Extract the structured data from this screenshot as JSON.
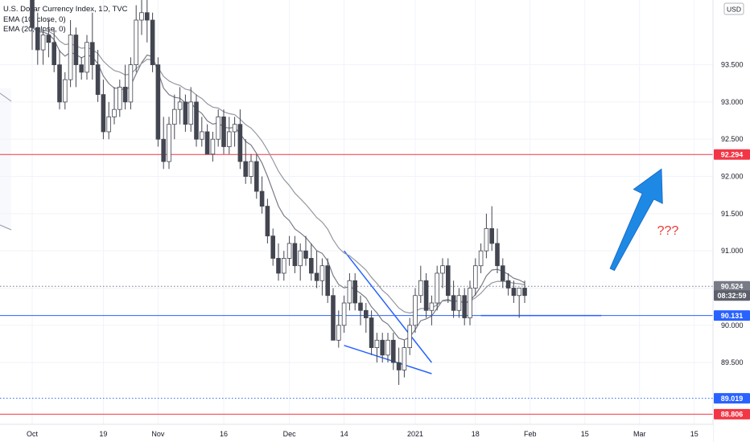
{
  "legend": {
    "title": "U.S. Dollar Currency Index, 1D, TVC",
    "ema1": "EMA (10, close, 0)",
    "ema2": "EMA (20, close, 0)"
  },
  "currency": "USD",
  "annotation": "???",
  "chart_data": {
    "type": "candlestick",
    "title": "U.S. Dollar Currency Index, 1D, TVC",
    "y_ticks": [
      93.5,
      93.0,
      92.5,
      92.0,
      91.5,
      91.0,
      90.5,
      90.0,
      89.5
    ],
    "y_tick_labels": [
      "93.500",
      "93.000",
      "92.500",
      "92.000",
      "91.500",
      "91.000",
      "90.500",
      "90.000",
      "89.500"
    ],
    "ylim": [
      88.67,
      94.37
    ],
    "x_ticks": [
      {
        "label": "Oct",
        "index": 0
      },
      {
        "label": "19",
        "index": 13
      },
      {
        "label": "Nov",
        "index": 23
      },
      {
        "label": "16",
        "index": 35
      },
      {
        "label": "Dec",
        "index": 47
      },
      {
        "label": "14",
        "index": 57
      },
      {
        "label": "2021",
        "index": 70
      },
      {
        "label": "18",
        "index": 81
      },
      {
        "label": "Feb",
        "index": 91
      },
      {
        "label": "15",
        "index": 101
      },
      {
        "label": "Mar",
        "index": 111
      },
      {
        "label": "15",
        "index": 121
      }
    ],
    "price_levels": [
      {
        "label": "92.294",
        "value": 92.294,
        "color": "#f23645",
        "style": "solid"
      },
      {
        "label": "90.524",
        "value": 90.524,
        "color": "#787b86",
        "style": "dotted"
      },
      {
        "label": "08:32:59",
        "value": 90.4,
        "color": "#787b86",
        "style": "none"
      },
      {
        "label": "90.131",
        "value": 90.131,
        "color": "#2962ff",
        "style": "solid"
      },
      {
        "label": "89.019",
        "value": 89.019,
        "color": "#2962ff",
        "style": "dotted"
      },
      {
        "label": "88.806",
        "value": 88.806,
        "color": "#f23645",
        "style": "solid"
      }
    ],
    "candles": [
      [
        94.6,
        94.8,
        93.7,
        94.0
      ],
      [
        94.0,
        94.2,
        93.5,
        93.7
      ],
      [
        93.7,
        94.0,
        93.5,
        93.9
      ],
      [
        93.9,
        94.1,
        93.6,
        93.8
      ],
      [
        93.8,
        94.0,
        93.4,
        93.5
      ],
      [
        93.5,
        93.7,
        92.9,
        93.0
      ],
      [
        93.0,
        93.4,
        92.9,
        93.3
      ],
      [
        93.3,
        94.1,
        93.2,
        93.9
      ],
      [
        93.9,
        94.0,
        93.2,
        93.5
      ],
      [
        93.5,
        93.6,
        93.3,
        93.4
      ],
      [
        93.4,
        93.9,
        93.3,
        93.8
      ],
      [
        93.8,
        94.2,
        93.3,
        93.5
      ],
      [
        93.5,
        93.7,
        93.0,
        93.1
      ],
      [
        93.1,
        93.3,
        92.5,
        92.6
      ],
      [
        92.6,
        93.0,
        92.5,
        92.8
      ],
      [
        92.8,
        93.2,
        92.7,
        92.9
      ],
      [
        92.9,
        93.3,
        92.8,
        93.2
      ],
      [
        93.2,
        93.5,
        92.9,
        93.0
      ],
      [
        93.0,
        93.6,
        92.9,
        93.5
      ],
      [
        93.5,
        94.3,
        93.4,
        94.1
      ],
      [
        94.1,
        94.5,
        93.9,
        94.2
      ],
      [
        94.2,
        94.5,
        93.8,
        94.1
      ],
      [
        94.1,
        94.2,
        93.4,
        93.5
      ],
      [
        93.5,
        93.6,
        92.4,
        92.5
      ],
      [
        92.5,
        92.8,
        92.1,
        92.2
      ],
      [
        92.2,
        92.8,
        92.1,
        92.7
      ],
      [
        92.7,
        93.1,
        92.5,
        92.9
      ],
      [
        92.9,
        93.2,
        92.7,
        93.0
      ],
      [
        93.0,
        93.1,
        92.6,
        92.7
      ],
      [
        92.7,
        93.2,
        92.6,
        93.0
      ],
      [
        93.0,
        93.1,
        92.4,
        92.5
      ],
      [
        92.5,
        92.8,
        92.4,
        92.6
      ],
      [
        92.6,
        92.7,
        92.3,
        92.3
      ],
      [
        92.3,
        92.6,
        92.2,
        92.5
      ],
      [
        92.5,
        92.9,
        92.4,
        92.8
      ],
      [
        92.8,
        92.9,
        92.3,
        92.4
      ],
      [
        92.4,
        92.8,
        92.3,
        92.6
      ],
      [
        92.6,
        92.8,
        92.4,
        92.7
      ],
      [
        92.7,
        92.9,
        92.1,
        92.2
      ],
      [
        92.2,
        92.5,
        91.9,
        92.0
      ],
      [
        92.0,
        92.3,
        91.9,
        92.2
      ],
      [
        92.2,
        92.3,
        91.7,
        91.8
      ],
      [
        91.8,
        92.0,
        91.5,
        91.6
      ],
      [
        91.6,
        91.7,
        91.1,
        91.2
      ],
      [
        91.2,
        91.3,
        90.8,
        90.9
      ],
      [
        90.9,
        91.1,
        90.6,
        90.7
      ],
      [
        90.7,
        91.0,
        90.6,
        90.9
      ],
      [
        90.9,
        91.2,
        90.8,
        91.1
      ],
      [
        91.1,
        91.2,
        90.7,
        90.8
      ],
      [
        90.8,
        91.1,
        90.6,
        91.0
      ],
      [
        91.0,
        91.2,
        90.8,
        90.9
      ],
      [
        90.9,
        91.1,
        90.6,
        90.7
      ],
      [
        90.7,
        91.0,
        90.5,
        90.6
      ],
      [
        90.6,
        90.9,
        90.4,
        90.8
      ],
      [
        90.8,
        90.9,
        90.3,
        90.4
      ],
      [
        90.4,
        90.5,
        89.8,
        89.8
      ],
      [
        89.8,
        90.2,
        89.7,
        90.0
      ],
      [
        90.0,
        90.4,
        89.9,
        90.3
      ],
      [
        90.3,
        90.7,
        90.2,
        90.6
      ],
      [
        90.6,
        90.7,
        90.2,
        90.3
      ],
      [
        90.3,
        90.4,
        90.0,
        90.2
      ],
      [
        90.2,
        90.3,
        89.9,
        90.1
      ],
      [
        90.1,
        90.2,
        89.6,
        89.7
      ],
      [
        89.7,
        89.9,
        89.5,
        89.8
      ],
      [
        89.8,
        89.9,
        89.5,
        89.6
      ],
      [
        89.6,
        89.9,
        89.5,
        89.8
      ],
      [
        89.8,
        89.9,
        89.4,
        89.5
      ],
      [
        89.5,
        89.7,
        89.2,
        89.4
      ],
      [
        89.4,
        89.8,
        89.3,
        89.7
      ],
      [
        89.7,
        90.1,
        89.6,
        90.0
      ],
      [
        90.0,
        90.5,
        89.9,
        90.4
      ],
      [
        90.4,
        90.8,
        90.3,
        90.6
      ],
      [
        90.6,
        90.7,
        90.1,
        90.2
      ],
      [
        90.2,
        90.4,
        90.0,
        90.3
      ],
      [
        90.3,
        90.8,
        90.2,
        90.7
      ],
      [
        90.7,
        90.9,
        90.5,
        90.8
      ],
      [
        90.8,
        90.9,
        90.3,
        90.4
      ],
      [
        90.4,
        90.6,
        90.1,
        90.2
      ],
      [
        90.2,
        90.5,
        90.1,
        90.4
      ],
      [
        90.4,
        90.5,
        90.0,
        90.1
      ],
      [
        90.1,
        90.6,
        90.0,
        90.5
      ],
      [
        90.5,
        90.9,
        90.4,
        90.8
      ],
      [
        90.8,
        91.1,
        90.7,
        91.0
      ],
      [
        91.0,
        91.5,
        90.9,
        91.3
      ],
      [
        91.3,
        91.6,
        91.0,
        91.1
      ],
      [
        91.1,
        91.3,
        90.7,
        90.8
      ],
      [
        90.8,
        90.9,
        90.5,
        90.6
      ],
      [
        90.6,
        90.7,
        90.4,
        90.5
      ],
      [
        90.5,
        90.6,
        90.3,
        90.4
      ],
      [
        90.4,
        90.5,
        90.1,
        90.5
      ],
      [
        90.5,
        90.6,
        90.3,
        90.4
      ]
    ],
    "ema": [
      {
        "name": "EMA (10, close, 0)",
        "color": "#787b86"
      },
      {
        "name": "EMA (20, close, 0)",
        "color": "#9598a1"
      }
    ],
    "drawings": [
      {
        "type": "trendline",
        "color": "#2962ff",
        "from": {
          "index": 57,
          "price": 91.0
        },
        "to": {
          "index": 73,
          "price": 89.5
        }
      },
      {
        "type": "trendline",
        "color": "#2962ff",
        "from": {
          "index": 57,
          "price": 89.73
        },
        "to": {
          "index": 73,
          "price": 89.35
        }
      },
      {
        "type": "trendline",
        "color": "#2962ff",
        "from": {
          "index": 82,
          "price": 90.131
        },
        "to": {
          "index": 104,
          "price": 90.131
        }
      },
      {
        "type": "arrow",
        "color": "#1e88e5",
        "from": {
          "index": 106,
          "price": 90.75
        },
        "to": {
          "index": 115,
          "price": 92.1
        }
      }
    ]
  }
}
